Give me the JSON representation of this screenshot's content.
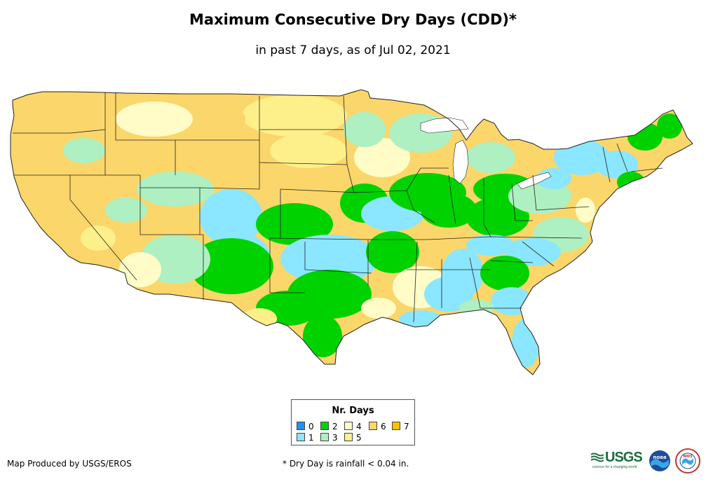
{
  "title": "Maximum Consecutive Dry Days (CDD)*",
  "subtitle": "in past 7 days, as of Jul 02, 2021",
  "legend": {
    "title": "Nr. Days",
    "items": [
      {
        "label": "0",
        "color": "#1e90ff"
      },
      {
        "label": "1",
        "color": "#8be6ff"
      },
      {
        "label": "2",
        "color": "#00d200"
      },
      {
        "label": "3",
        "color": "#aef0c2"
      },
      {
        "label": "4",
        "color": "#fffcc8"
      },
      {
        "label": "5",
        "color": "#fdf08a"
      },
      {
        "label": "6",
        "color": "#fbd66a"
      },
      {
        "label": "7",
        "color": "#fbc100"
      }
    ]
  },
  "credit": "Map Produced by USGS/EROS",
  "footnote": "* Dry Day is rainfall < 0.04 in.",
  "logos": {
    "usgs": "USGS",
    "usgs_tagline": "science for a changing world",
    "noaa": "noaa",
    "nws": "NWS"
  }
}
